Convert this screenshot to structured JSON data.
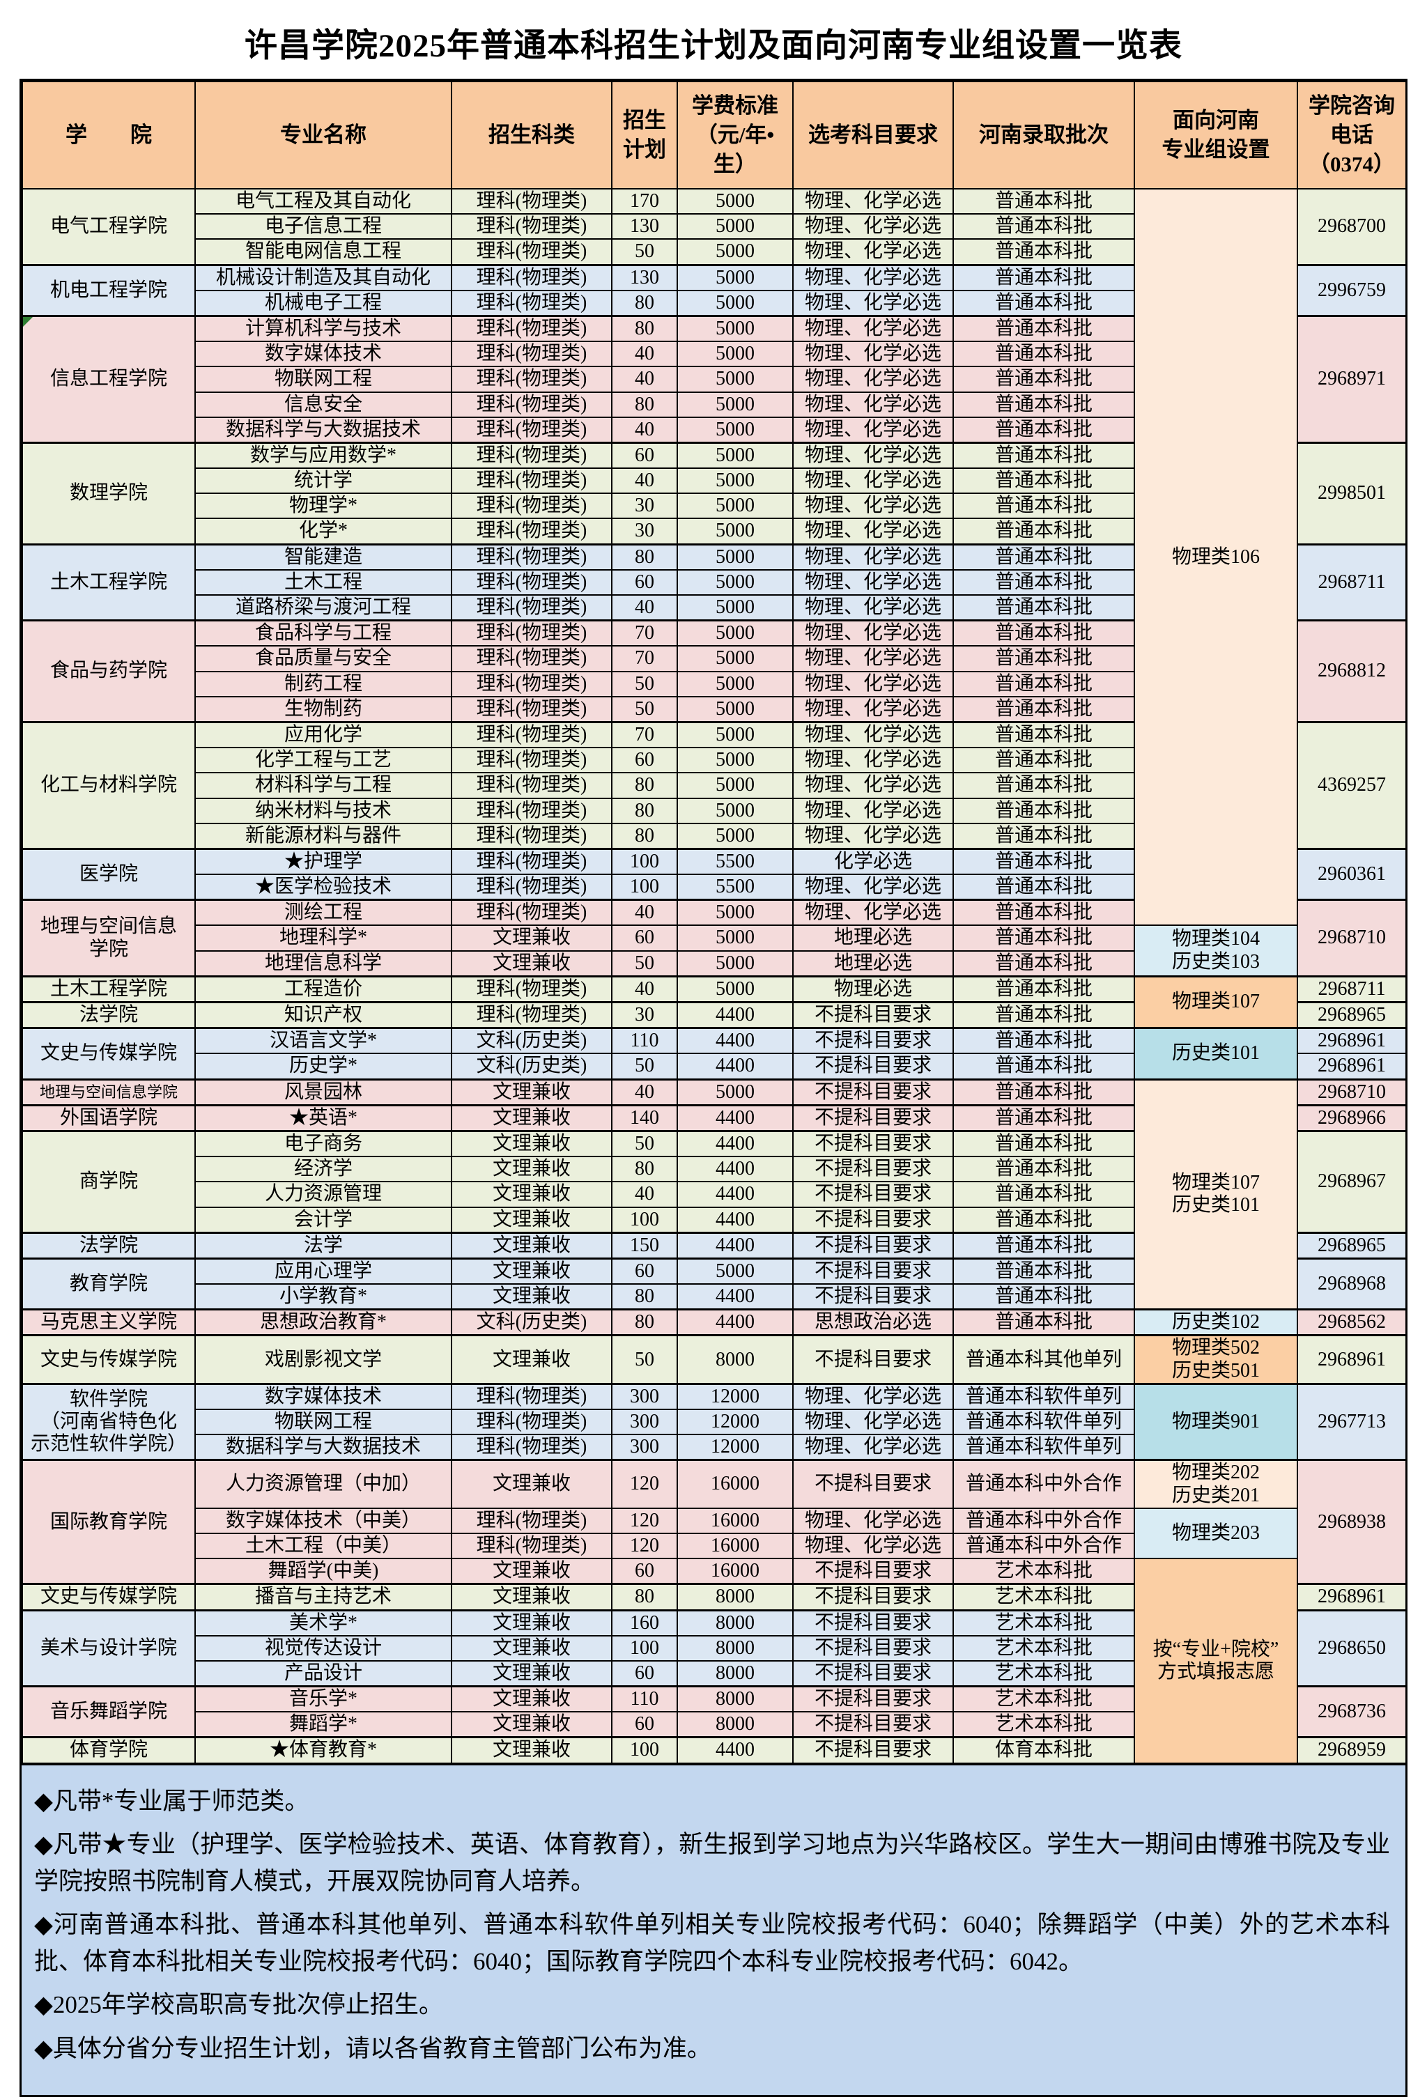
{
  "title": "许昌学院2025年普通本科招生计划及面向河南专业组设置一览表",
  "colors": {
    "header": "#f9c99f",
    "group_green": "#ebf0dc",
    "group_blue": "#dce7f3",
    "group_pink": "#f4dbdb",
    "cell_light_peach": "#fdeada",
    "cell_peach": "#fbcfa4",
    "cell_light_blue": "#d9ecf4",
    "cell_teal": "#b7dfe8",
    "notes_bg": "#c3d7ef",
    "border": "#000000"
  },
  "table": {
    "columns": [
      "学　　院",
      "专业名称",
      "招生科类",
      "招生\n计划",
      "学费标准\n（元/年•生）",
      "选考科目要求",
      "河南录取批次",
      "面向河南\n专业组设置",
      "学院咨询\n电话\n（0374）"
    ],
    "rows": [
      [
        "电气工程及其自动化",
        "理科(物理类)",
        "170",
        "5000",
        "物理、化学必选",
        "普通本科批"
      ],
      [
        "电子信息工程",
        "理科(物理类)",
        "130",
        "5000",
        "物理、化学必选",
        "普通本科批"
      ],
      [
        "智能电网信息工程",
        "理科(物理类)",
        "50",
        "5000",
        "物理、化学必选",
        "普通本科批"
      ],
      [
        "机械设计制造及其自动化",
        "理科(物理类)",
        "130",
        "5000",
        "物理、化学必选",
        "普通本科批"
      ],
      [
        "机械电子工程",
        "理科(物理类)",
        "80",
        "5000",
        "物理、化学必选",
        "普通本科批"
      ],
      [
        "计算机科学与技术",
        "理科(物理类)",
        "80",
        "5000",
        "物理、化学必选",
        "普通本科批"
      ],
      [
        "数字媒体技术",
        "理科(物理类)",
        "40",
        "5000",
        "物理、化学必选",
        "普通本科批"
      ],
      [
        "物联网工程",
        "理科(物理类)",
        "40",
        "5000",
        "物理、化学必选",
        "普通本科批"
      ],
      [
        "信息安全",
        "理科(物理类)",
        "80",
        "5000",
        "物理、化学必选",
        "普通本科批"
      ],
      [
        "数据科学与大数据技术",
        "理科(物理类)",
        "40",
        "5000",
        "物理、化学必选",
        "普通本科批"
      ],
      [
        "数学与应用数学*",
        "理科(物理类)",
        "60",
        "5000",
        "物理、化学必选",
        "普通本科批"
      ],
      [
        "统计学",
        "理科(物理类)",
        "40",
        "5000",
        "物理、化学必选",
        "普通本科批"
      ],
      [
        "物理学*",
        "理科(物理类)",
        "30",
        "5000",
        "物理、化学必选",
        "普通本科批"
      ],
      [
        "化学*",
        "理科(物理类)",
        "30",
        "5000",
        "物理、化学必选",
        "普通本科批"
      ],
      [
        "智能建造",
        "理科(物理类)",
        "80",
        "5000",
        "物理、化学必选",
        "普通本科批"
      ],
      [
        "土木工程",
        "理科(物理类)",
        "60",
        "5000",
        "物理、化学必选",
        "普通本科批"
      ],
      [
        "道路桥梁与渡河工程",
        "理科(物理类)",
        "40",
        "5000",
        "物理、化学必选",
        "普通本科批"
      ],
      [
        "食品科学与工程",
        "理科(物理类)",
        "70",
        "5000",
        "物理、化学必选",
        "普通本科批"
      ],
      [
        "食品质量与安全",
        "理科(物理类)",
        "70",
        "5000",
        "物理、化学必选",
        "普通本科批"
      ],
      [
        "制药工程",
        "理科(物理类)",
        "50",
        "5000",
        "物理、化学必选",
        "普通本科批"
      ],
      [
        "生物制药",
        "理科(物理类)",
        "50",
        "5000",
        "物理、化学必选",
        "普通本科批"
      ],
      [
        "应用化学",
        "理科(物理类)",
        "70",
        "5000",
        "物理、化学必选",
        "普通本科批"
      ],
      [
        "化学工程与工艺",
        "理科(物理类)",
        "60",
        "5000",
        "物理、化学必选",
        "普通本科批"
      ],
      [
        "材料科学与工程",
        "理科(物理类)",
        "80",
        "5000",
        "物理、化学必选",
        "普通本科批"
      ],
      [
        "纳米材料与技术",
        "理科(物理类)",
        "80",
        "5000",
        "物理、化学必选",
        "普通本科批"
      ],
      [
        "新能源材料与器件",
        "理科(物理类)",
        "80",
        "5000",
        "物理、化学必选",
        "普通本科批"
      ],
      [
        "★护理学",
        "理科(物理类)",
        "100",
        "5500",
        "化学必选",
        "普通本科批"
      ],
      [
        "★医学检验技术",
        "理科(物理类)",
        "100",
        "5500",
        "物理、化学必选",
        "普通本科批"
      ],
      [
        "测绘工程",
        "理科(物理类)",
        "40",
        "5000",
        "物理、化学必选",
        "普通本科批"
      ],
      [
        "地理科学*",
        "文理兼收",
        "60",
        "5000",
        "地理必选",
        "普通本科批"
      ],
      [
        "地理信息科学",
        "文理兼收",
        "50",
        "5000",
        "地理必选",
        "普通本科批"
      ],
      [
        "工程造价",
        "理科(物理类)",
        "40",
        "5000",
        "物理必选",
        "普通本科批"
      ],
      [
        "知识产权",
        "理科(物理类)",
        "30",
        "4400",
        "不提科目要求",
        "普通本科批"
      ],
      [
        "汉语言文学*",
        "文科(历史类)",
        "110",
        "4400",
        "不提科目要求",
        "普通本科批"
      ],
      [
        "历史学*",
        "文科(历史类)",
        "50",
        "4400",
        "不提科目要求",
        "普通本科批"
      ],
      [
        "风景园林",
        "文理兼收",
        "40",
        "5000",
        "不提科目要求",
        "普通本科批"
      ],
      [
        "★英语*",
        "文理兼收",
        "140",
        "4400",
        "不提科目要求",
        "普通本科批"
      ],
      [
        "电子商务",
        "文理兼收",
        "50",
        "4400",
        "不提科目要求",
        "普通本科批"
      ],
      [
        "经济学",
        "文理兼收",
        "80",
        "4400",
        "不提科目要求",
        "普通本科批"
      ],
      [
        "人力资源管理",
        "文理兼收",
        "40",
        "4400",
        "不提科目要求",
        "普通本科批"
      ],
      [
        "会计学",
        "文理兼收",
        "100",
        "4400",
        "不提科目要求",
        "普通本科批"
      ],
      [
        "法学",
        "文理兼收",
        "150",
        "4400",
        "不提科目要求",
        "普通本科批"
      ],
      [
        "应用心理学",
        "文理兼收",
        "60",
        "5000",
        "不提科目要求",
        "普通本科批"
      ],
      [
        "小学教育*",
        "文理兼收",
        "80",
        "4400",
        "不提科目要求",
        "普通本科批"
      ],
      [
        "思想政治教育*",
        "文科(历史类)",
        "80",
        "4400",
        "思想政治必选",
        "普通本科批"
      ],
      [
        "戏剧影视文学",
        "文理兼收",
        "50",
        "8000",
        "不提科目要求",
        "普通本科其他单列"
      ],
      [
        "数字媒体技术",
        "理科(物理类)",
        "300",
        "12000",
        "物理、化学必选",
        "普通本科软件单列"
      ],
      [
        "物联网工程",
        "理科(物理类)",
        "300",
        "12000",
        "物理、化学必选",
        "普通本科软件单列"
      ],
      [
        "数据科学与大数据技术",
        "理科(物理类)",
        "300",
        "12000",
        "物理、化学必选",
        "普通本科软件单列"
      ],
      [
        "人力资源管理（中加）",
        "文理兼收",
        "120",
        "16000",
        "不提科目要求",
        "普通本科中外合作"
      ],
      [
        "数字媒体技术（中美）",
        "理科(物理类)",
        "120",
        "16000",
        "物理、化学必选",
        "普通本科中外合作"
      ],
      [
        "土木工程（中美）",
        "理科(物理类)",
        "120",
        "16000",
        "物理、化学必选",
        "普通本科中外合作"
      ],
      [
        "舞蹈学(中美)",
        "文理兼收",
        "60",
        "16000",
        "不提科目要求",
        "艺术本科批"
      ],
      [
        "播音与主持艺术",
        "文理兼收",
        "80",
        "8000",
        "不提科目要求",
        "艺术本科批"
      ],
      [
        "美术学*",
        "文理兼收",
        "160",
        "8000",
        "不提科目要求",
        "艺术本科批"
      ],
      [
        "视觉传达设计",
        "文理兼收",
        "100",
        "8000",
        "不提科目要求",
        "艺术本科批"
      ],
      [
        "产品设计",
        "文理兼收",
        "60",
        "8000",
        "不提科目要求",
        "艺术本科批"
      ],
      [
        "音乐学*",
        "文理兼收",
        "110",
        "8000",
        "不提科目要求",
        "艺术本科批"
      ],
      [
        "舞蹈学*",
        "文理兼收",
        "60",
        "8000",
        "不提科目要求",
        "艺术本科批"
      ],
      [
        "★体育教育*",
        "文理兼收",
        "100",
        "4400",
        "不提科目要求",
        "体育本科批"
      ]
    ],
    "row_heights": {
      "45": 66,
      "49": 60
    },
    "college_spans": [
      {
        "s": 0,
        "n": 3,
        "label": "电气工程学院",
        "color": "green"
      },
      {
        "s": 3,
        "n": 2,
        "label": "机电工程学院",
        "color": "blue"
      },
      {
        "s": 5,
        "n": 5,
        "label": "信息工程学院",
        "color": "pink",
        "flag": true
      },
      {
        "s": 10,
        "n": 4,
        "label": "数理学院",
        "color": "green"
      },
      {
        "s": 14,
        "n": 3,
        "label": "土木工程学院",
        "color": "blue"
      },
      {
        "s": 17,
        "n": 4,
        "label": "食品与药学院",
        "color": "pink"
      },
      {
        "s": 21,
        "n": 5,
        "label": "化工与材料学院",
        "color": "green"
      },
      {
        "s": 26,
        "n": 2,
        "label": "医学院",
        "color": "blue"
      },
      {
        "s": 28,
        "n": 3,
        "label": "地理与空间信息\n学院",
        "color": "pink"
      },
      {
        "s": 31,
        "n": 1,
        "label": "土木工程学院",
        "color": "green"
      },
      {
        "s": 32,
        "n": 1,
        "label": "法学院",
        "color": "green"
      },
      {
        "s": 33,
        "n": 2,
        "label": "文史与传媒学院",
        "color": "blue"
      },
      {
        "s": 35,
        "n": 1,
        "label": "地理与空间信息学院",
        "color": "pink",
        "small": true
      },
      {
        "s": 36,
        "n": 1,
        "label": "外国语学院",
        "color": "pink"
      },
      {
        "s": 37,
        "n": 4,
        "label": "商学院",
        "color": "green"
      },
      {
        "s": 41,
        "n": 1,
        "label": "法学院",
        "color": "blue"
      },
      {
        "s": 42,
        "n": 2,
        "label": "教育学院",
        "color": "blue"
      },
      {
        "s": 44,
        "n": 1,
        "label": "马克思主义学院",
        "color": "pink"
      },
      {
        "s": 45,
        "n": 1,
        "label": "文史与传媒学院",
        "color": "green"
      },
      {
        "s": 46,
        "n": 3,
        "label": "软件学院\n（河南省特色化\n示范性软件学院）",
        "color": "blue"
      },
      {
        "s": 49,
        "n": 4,
        "label": "国际教育学院",
        "color": "pink"
      },
      {
        "s": 53,
        "n": 1,
        "label": "文史与传媒学院",
        "color": "green"
      },
      {
        "s": 54,
        "n": 3,
        "label": "美术与设计学院",
        "color": "blue"
      },
      {
        "s": 57,
        "n": 2,
        "label": "音乐舞蹈学院",
        "color": "pink"
      },
      {
        "s": 59,
        "n": 1,
        "label": "体育学院",
        "color": "green"
      }
    ],
    "group_spans": [
      {
        "s": 0,
        "n": 29,
        "label": "物理类106",
        "color": "lpeach"
      },
      {
        "s": 29,
        "n": 2,
        "label": "物理类104\n历史类103",
        "color": "lblue"
      },
      {
        "s": 31,
        "n": 2,
        "label": "物理类107",
        "color": "peach"
      },
      {
        "s": 33,
        "n": 2,
        "label": "历史类101",
        "color": "teal"
      },
      {
        "s": 35,
        "n": 9,
        "label": "物理类107\n历史类101",
        "color": "lpeach"
      },
      {
        "s": 44,
        "n": 1,
        "label": "历史类102",
        "color": "lblue"
      },
      {
        "s": 45,
        "n": 1,
        "label": "物理类502\n历史类501",
        "color": "peach"
      },
      {
        "s": 46,
        "n": 3,
        "label": "物理类901",
        "color": "teal"
      },
      {
        "s": 49,
        "n": 1,
        "label": "物理类202\n历史类201",
        "color": "lpeach"
      },
      {
        "s": 50,
        "n": 2,
        "label": "物理类203",
        "color": "lblue"
      },
      {
        "s": 52,
        "n": 8,
        "label": "按“专业+院校”\n方式填报志愿",
        "color": "peach"
      }
    ],
    "phone_spans": [
      {
        "s": 0,
        "n": 3,
        "label": "2968700"
      },
      {
        "s": 3,
        "n": 2,
        "label": "2996759"
      },
      {
        "s": 5,
        "n": 5,
        "label": "2968971"
      },
      {
        "s": 10,
        "n": 4,
        "label": "2998501"
      },
      {
        "s": 14,
        "n": 3,
        "label": "2968711"
      },
      {
        "s": 17,
        "n": 4,
        "label": "2968812"
      },
      {
        "s": 21,
        "n": 5,
        "label": "4369257"
      },
      {
        "s": 26,
        "n": 2,
        "label": "2960361"
      },
      {
        "s": 28,
        "n": 3,
        "label": "2968710"
      },
      {
        "s": 31,
        "n": 1,
        "label": "2968711"
      },
      {
        "s": 32,
        "n": 1,
        "label": "2968965"
      },
      {
        "s": 33,
        "n": 1,
        "label": "2968961"
      },
      {
        "s": 34,
        "n": 1,
        "label": "2968961"
      },
      {
        "s": 35,
        "n": 1,
        "label": "2968710"
      },
      {
        "s": 36,
        "n": 1,
        "label": "2968966"
      },
      {
        "s": 37,
        "n": 4,
        "label": "2968967"
      },
      {
        "s": 41,
        "n": 1,
        "label": "2968965"
      },
      {
        "s": 42,
        "n": 2,
        "label": "2968968"
      },
      {
        "s": 44,
        "n": 1,
        "label": "2968562"
      },
      {
        "s": 45,
        "n": 1,
        "label": "2968961"
      },
      {
        "s": 46,
        "n": 3,
        "label": "2967713"
      },
      {
        "s": 49,
        "n": 4,
        "label": "2968938"
      },
      {
        "s": 53,
        "n": 1,
        "label": "2968961"
      },
      {
        "s": 54,
        "n": 3,
        "label": "2968650"
      },
      {
        "s": 57,
        "n": 2,
        "label": "2968736"
      },
      {
        "s": 59,
        "n": 1,
        "label": "2968959"
      }
    ]
  },
  "notes": [
    "◆凡带*专业属于师范类。",
    "◆凡带★专业（护理学、医学检验技术、英语、体育教育），新生报到学习地点为兴华路校区。学生大一期间由博雅书院及专业学院按照书院制育人模式，开展双院协同育人培养。",
    "◆河南普通本科批、普通本科其他单列、普通本科软件单列相关专业院校报考代码：6040；除舞蹈学（中美）外的艺术本科批、体育本科批相关专业院校报考代码：6040；国际教育学院四个本科专业院校报考代码：6042。",
    "◆2025年学校高职高专批次停止招生。",
    "◆具体分省分专业招生计划，请以各省教育主管部门公布为准。"
  ]
}
